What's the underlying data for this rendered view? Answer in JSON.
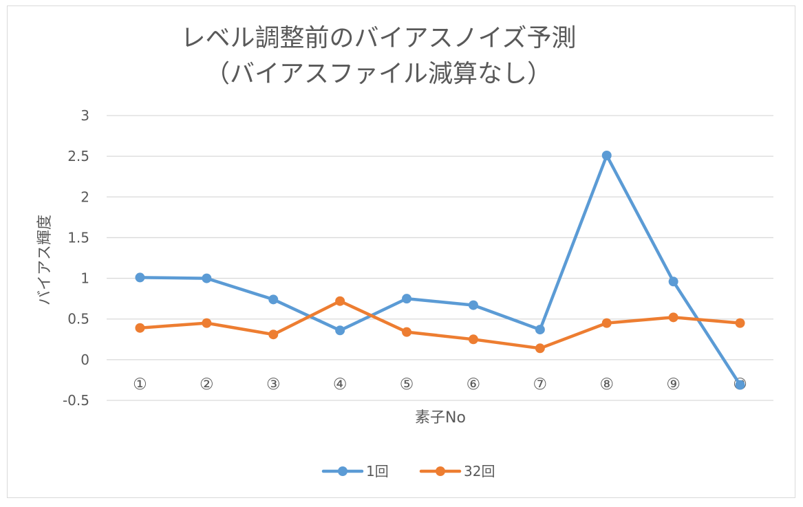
{
  "chart_data": {
    "type": "line",
    "title_line1": "レベル調整前のバイアスノイズ予測",
    "title_line2": "（バイアスファイル減算なし）",
    "xlabel": "素子No",
    "ylabel": "バイアス輝度",
    "categories": [
      "①",
      "②",
      "③",
      "④",
      "⑤",
      "⑥",
      "⑦",
      "⑧",
      "⑨",
      "⑩"
    ],
    "ylim": [
      -0.5,
      3
    ],
    "yticks": [
      -0.5,
      0,
      0.5,
      1,
      1.5,
      2,
      2.5,
      3
    ],
    "ytick_labels": [
      "-0.5",
      "0",
      "0.5",
      "1",
      "1.5",
      "2",
      "2.5",
      "3"
    ],
    "grid": true,
    "legend_position": "bottom",
    "series": [
      {
        "name": "1回",
        "color": "#5b9bd5",
        "values": [
          1.01,
          1.0,
          0.74,
          0.36,
          0.75,
          0.67,
          0.37,
          2.51,
          0.96,
          -0.31
        ]
      },
      {
        "name": "32回",
        "color": "#ed7d31",
        "values": [
          0.39,
          0.45,
          0.31,
          0.72,
          0.34,
          0.25,
          0.14,
          0.45,
          0.52,
          0.45
        ]
      }
    ]
  }
}
